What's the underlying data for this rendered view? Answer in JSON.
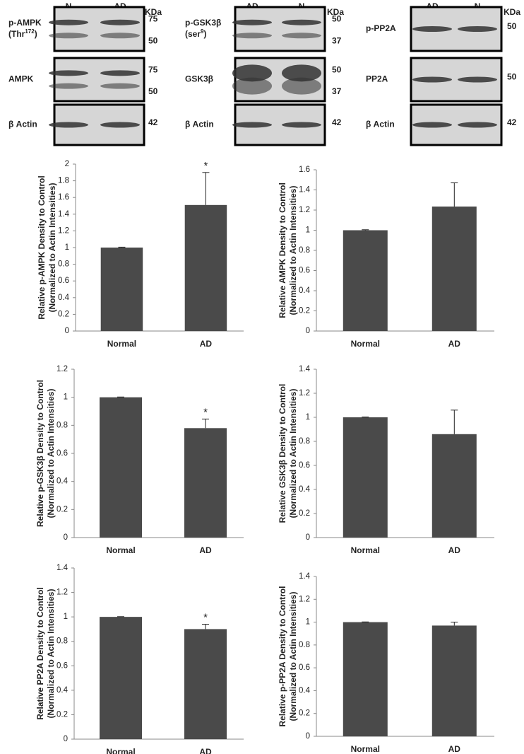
{
  "blots": [
    {
      "unit": "KDa",
      "lanes": [
        "N",
        "AD"
      ],
      "rows": [
        {
          "lines": [
            [
              "p-AMPK"
            ],
            [
              "(Thr",
              "172",
              ")"
            ]
          ],
          "markers": [
            75,
            50
          ]
        },
        {
          "lines": [
            [
              "AMPK"
            ]
          ],
          "markers": [
            75,
            50
          ]
        },
        {
          "lines": [
            [
              "β Actin"
            ]
          ],
          "markers": [
            42
          ]
        }
      ]
    },
    {
      "unit": "KDa",
      "lanes": [
        "AD",
        "N"
      ],
      "rows": [
        {
          "lines": [
            [
              "p-GSK3β"
            ],
            [
              "(ser",
              "9",
              ")"
            ]
          ],
          "markers": [
            50,
            37
          ]
        },
        {
          "lines": [
            [
              "GSK3β"
            ]
          ],
          "markers": [
            50,
            37
          ]
        },
        {
          "lines": [
            [
              "β Actin"
            ]
          ],
          "markers": [
            42
          ]
        }
      ]
    },
    {
      "unit": "KDa",
      "lanes": [
        "AD",
        "N"
      ],
      "rows": [
        {
          "lines": [
            [
              "p-PP2A"
            ]
          ],
          "markers": [
            50
          ]
        },
        {
          "lines": [
            [
              "PP2A"
            ]
          ],
          "markers": [
            50
          ]
        },
        {
          "lines": [
            [
              "β Actin"
            ]
          ],
          "markers": [
            42
          ]
        }
      ]
    }
  ],
  "chart_data": [
    {
      "type": "bar",
      "ylabel": [
        "Relative p-AMPK Density to Control",
        "(Normalized to Actin Intensities)"
      ],
      "categories": [
        "Normal",
        "AD"
      ],
      "values": [
        1,
        1.51
      ],
      "errors": [
        0.005,
        0.39
      ],
      "significance": [
        null,
        "*"
      ],
      "color": "#4a4a4a",
      "ylim": [
        0,
        2
      ],
      "yticks": [
        0,
        0.2,
        0.4,
        0.6,
        0.8,
        1,
        1.2,
        1.4,
        1.6,
        1.8,
        2
      ]
    },
    {
      "type": "bar",
      "ylabel": [
        "Relative AMPK Density to Control",
        "(Normalized to Actin Intensities)"
      ],
      "categories": [
        "Normal",
        "AD"
      ],
      "values": [
        1,
        1.235
      ],
      "errors": [
        0.005,
        0.235
      ],
      "significance": [
        null,
        null
      ],
      "color": "#4a4a4a",
      "ylim": [
        0,
        1.6
      ],
      "yticks": [
        0,
        0.2,
        0.4,
        0.6,
        0.8,
        1,
        1.2,
        1.4,
        1.6
      ]
    },
    {
      "type": "bar",
      "ylabel": [
        "Relative p-GSK3β Density to Control",
        "(Normalized to Actin Intensities)"
      ],
      "categories": [
        "Normal",
        "AD"
      ],
      "values": [
        1,
        0.78
      ],
      "errors": [
        0.002,
        0.065
      ],
      "significance": [
        null,
        "*"
      ],
      "color": "#4a4a4a",
      "ylim": [
        0,
        1.2
      ],
      "yticks": [
        0,
        0.2,
        0.4,
        0.6,
        0.8,
        1,
        1.2
      ]
    },
    {
      "type": "bar",
      "ylabel": [
        "Relative GSK3β Density to Control",
        "(Normalized to Actin Intensities)"
      ],
      "categories": [
        "Normal",
        "AD"
      ],
      "values": [
        1,
        0.86
      ],
      "errors": [
        0.003,
        0.2
      ],
      "significance": [
        null,
        null
      ],
      "color": "#4a4a4a",
      "ylim": [
        0,
        1.4
      ],
      "yticks": [
        0,
        0.2,
        0.4,
        0.6,
        0.8,
        1,
        1.2,
        1.4
      ]
    },
    {
      "type": "bar",
      "ylabel": [
        "Relative PP2A Density to Control",
        "(Normalized to Actin Intensities)"
      ],
      "categories": [
        "Normal",
        "AD"
      ],
      "values": [
        1,
        0.9
      ],
      "errors": [
        0.002,
        0.04
      ],
      "significance": [
        null,
        "*"
      ],
      "color": "#4a4a4a",
      "ylim": [
        0,
        1.4
      ],
      "yticks": [
        0,
        0.2,
        0.4,
        0.6,
        0.8,
        1,
        1.2,
        1.4
      ]
    },
    {
      "type": "bar",
      "ylabel": [
        "Relative p-PP2A Density to Control",
        "(Normalized to Actin Intensities)"
      ],
      "categories": [
        "Normal",
        "AD"
      ],
      "values": [
        1,
        0.97
      ],
      "errors": [
        0.002,
        0.03
      ],
      "significance": [
        null,
        null
      ],
      "color": "#4a4a4a",
      "ylim": [
        0,
        1.4
      ],
      "yticks": [
        0,
        0.2,
        0.4,
        0.6,
        0.8,
        1,
        1.2,
        1.4
      ]
    }
  ]
}
